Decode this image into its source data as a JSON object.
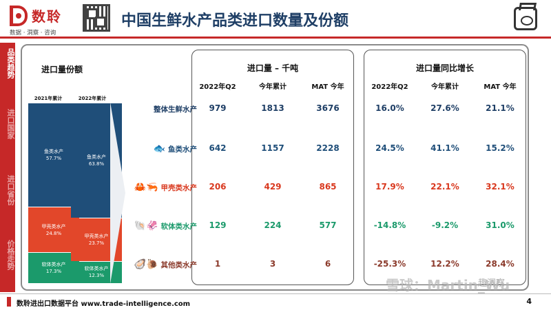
{
  "header": {
    "logo_name": "数聆",
    "logo_tagline": "数据 · 洞察 · 咨询",
    "title": "中国生鲜水产品类进口数量及份额"
  },
  "sidenav": {
    "items": [
      {
        "label": "品类趋势",
        "active": true
      },
      {
        "label": "进口国家",
        "active": false
      },
      {
        "label": "进口省份",
        "active": false
      },
      {
        "label": "价格走势",
        "active": false
      }
    ]
  },
  "share": {
    "title": "进口量份额",
    "columns": [
      {
        "label": "2021年累计",
        "segments": [
          {
            "name": "鱼类水产",
            "value": "57.7%",
            "share": 57.7,
            "color": "#1f4e79"
          },
          {
            "name": "甲壳类水产",
            "value": "24.8%",
            "share": 24.8,
            "color": "#e2472a"
          },
          {
            "name": "软体类水产",
            "value": "17.3%",
            "share": 17.3,
            "color": "#1b9a6b"
          }
        ]
      },
      {
        "label": "2022年累计",
        "segments": [
          {
            "name": "鱼类水产",
            "value": "63.8%",
            "share": 63.8,
            "color": "#1f4e79"
          },
          {
            "name": "甲壳类水产",
            "value": "23.7%",
            "share": 23.7,
            "color": "#e2472a"
          },
          {
            "name": "软体类水产",
            "value": "12.3%",
            "share": 12.3,
            "color": "#1b9a6b"
          }
        ]
      }
    ]
  },
  "volume_table": {
    "title": "进口量 – 千吨",
    "headers": [
      "2022年Q2",
      "今年累计",
      "MAT 今年"
    ]
  },
  "growth_table": {
    "title": "进口量同比增长",
    "headers": [
      "2022年Q2",
      "今年累计",
      "MAT 今年"
    ]
  },
  "rows": [
    {
      "label": "整体生鲜水产",
      "icon": "",
      "color": "#1f3f66",
      "volume": [
        "979",
        "1813",
        "3676"
      ],
      "growth": [
        "16.0%",
        "27.6%",
        "21.1%"
      ]
    },
    {
      "label": "鱼类水产",
      "icon": "fish-icon",
      "color": "#1f4e79",
      "volume": [
        "642",
        "1157",
        "2228"
      ],
      "growth": [
        "24.5%",
        "41.1%",
        "15.2%"
      ]
    },
    {
      "label": "甲壳类水产",
      "icon": "crab-shrimp-icon",
      "color": "#d9381e",
      "volume": [
        "206",
        "429",
        "865"
      ],
      "growth": [
        "17.9%",
        "22.1%",
        "32.1%"
      ]
    },
    {
      "label": "软体类水产",
      "icon": "shell-squid-icon",
      "color": "#1b9a6b",
      "volume": [
        "129",
        "224",
        "577"
      ],
      "growth": [
        "-14.8%",
        "-9.2%",
        "31.0%"
      ]
    },
    {
      "label": "其他类水产",
      "icon": "other-seafood-icon",
      "color": "#8b3a2b",
      "volume": [
        "1",
        "3",
        "6"
      ],
      "growth": [
        "-25.3%",
        "12.2%",
        "28.4%"
      ]
    }
  ],
  "footer": {
    "text": "数聆进出口数据平台 www.trade-intelligence.com",
    "page": "4"
  },
  "watermarks": {
    "main": "雪球：Martin_Wu",
    "secondary": "趣洞察"
  }
}
